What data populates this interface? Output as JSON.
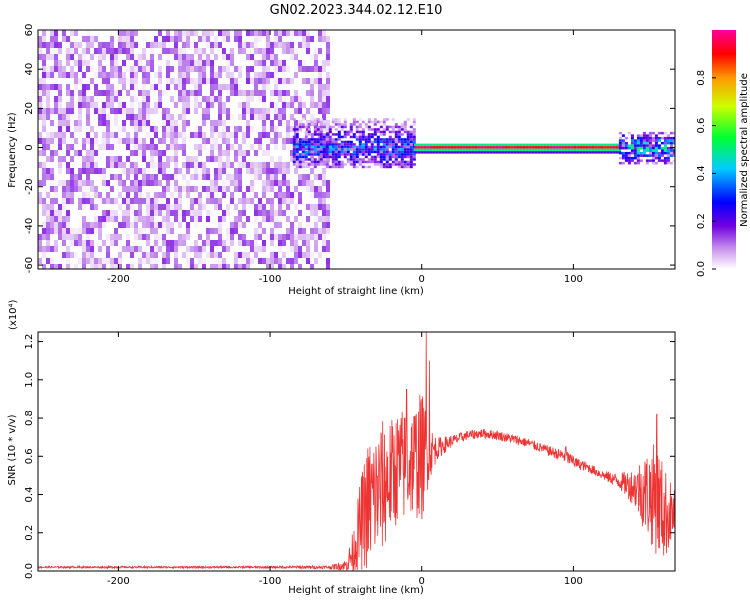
{
  "title": "GN02.2023.344.02.12.E10",
  "chart_data": [
    {
      "type": "heatmap",
      "title": "GN02.2023.344.02.12.E10",
      "xlabel": "Height of straight line (km)",
      "ylabel": "Frequency (Hz)",
      "xlim": [
        -253,
        167
      ],
      "ylim": [
        -62,
        60
      ],
      "x_ticks": [
        -200,
        -100,
        0,
        100
      ],
      "x_tick_labels": [
        "-200",
        "-100",
        "0",
        "100"
      ],
      "y_ticks": [
        -60,
        -40,
        -20,
        0,
        20,
        40,
        60
      ],
      "y_tick_labels": [
        "-60",
        "-40",
        "-20",
        "0",
        "20",
        "40",
        "60"
      ],
      "colorbar": {
        "label": "Normalized spectral amplitude",
        "range": [
          0,
          1
        ],
        "ticks": [
          0.0,
          0.2,
          0.4,
          0.6,
          0.8
        ],
        "tick_labels": [
          "0.0",
          "0.2",
          "0.4",
          "0.6",
          "0.8"
        ],
        "colormap": "rainbow white-violet-blue-cyan-green-yellow-red-magenta"
      },
      "regions": [
        {
          "x": [
            -253,
            -62
          ],
          "freq": [
            -62,
            60
          ],
          "amplitude": [
            0.0,
            0.15
          ],
          "note": "broadband noise"
        },
        {
          "x": [
            -85,
            -5
          ],
          "freq": [
            -10,
            15
          ],
          "amplitude": [
            0.1,
            0.45
          ]
        },
        {
          "x": [
            -5,
            130
          ],
          "freq": [
            -2,
            2
          ],
          "amplitude": [
            0.8,
            1.0
          ],
          "note": "narrow line at 0 Hz"
        },
        {
          "x": [
            130,
            167
          ],
          "freq": [
            -8,
            8
          ],
          "amplitude": [
            0.1,
            0.6
          ]
        }
      ],
      "grid": false
    },
    {
      "type": "line",
      "xlabel": "Height of straight line (km)",
      "ylabel": "SNR (10 * v/v)",
      "yscale_label": "(x10⁴)",
      "xlim": [
        -253,
        167
      ],
      "ylim": [
        0,
        1.25
      ],
      "x_ticks": [
        -200,
        -100,
        0,
        100
      ],
      "x_tick_labels": [
        "-200",
        "-100",
        "0",
        "100"
      ],
      "y_ticks": [
        0.0,
        0.2,
        0.4,
        0.6,
        0.8,
        1.0,
        1.2
      ],
      "y_tick_labels": [
        "0.0",
        "0.2",
        "0.4",
        "0.6",
        "0.8",
        "1.0",
        "1.2"
      ],
      "series": [
        {
          "color": "#ee3333",
          "x": [
            -253,
            -200,
            -150,
            -100,
            -60,
            -50,
            -45,
            -40,
            -35,
            -30,
            -25,
            -20,
            -15,
            -10,
            -5,
            0,
            5,
            10,
            20,
            30,
            40,
            50,
            60,
            70,
            80,
            90,
            95,
            100,
            110,
            120,
            130,
            140,
            145,
            150,
            155,
            160,
            167
          ],
          "y": [
            0.02,
            0.02,
            0.02,
            0.02,
            0.02,
            0.03,
            0.1,
            0.25,
            0.35,
            0.4,
            0.45,
            0.5,
            0.55,
            0.55,
            0.58,
            0.6,
            0.62,
            0.64,
            0.68,
            0.71,
            0.72,
            0.71,
            0.69,
            0.67,
            0.64,
            0.61,
            0.6,
            0.57,
            0.54,
            0.5,
            0.47,
            0.44,
            0.42,
            0.4,
            0.38,
            0.3,
            0.3
          ],
          "noise_amplitude": [
            0.005,
            0.005,
            0.005,
            0.005,
            0.01,
            0.03,
            0.12,
            0.25,
            0.35,
            0.35,
            0.35,
            0.3,
            0.3,
            0.3,
            0.3,
            0.35,
            0.15,
            0.06,
            0.03,
            0.025,
            0.025,
            0.025,
            0.025,
            0.025,
            0.025,
            0.03,
            0.04,
            0.03,
            0.025,
            0.025,
            0.04,
            0.1,
            0.18,
            0.25,
            0.3,
            0.25,
            0.12
          ],
          "spikes": [
            [
              -10,
              0.95
            ],
            [
              3,
              1.25
            ],
            [
              5,
              1.1
            ],
            [
              95,
              0.65
            ],
            [
              100,
              0.6
            ],
            [
              155,
              0.82
            ]
          ]
        }
      ],
      "grid": false
    }
  ]
}
